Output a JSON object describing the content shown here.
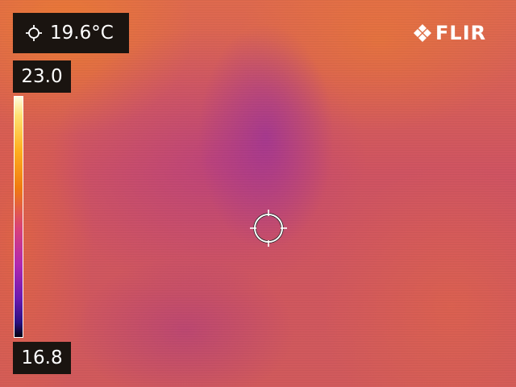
{
  "spot_meter": {
    "icon": "crosshair-icon",
    "value": "19.6°C"
  },
  "scale": {
    "max": "23.0",
    "min": "16.8",
    "palette": [
      "#fffbe0",
      "#ffe070",
      "#ffb020",
      "#f07a10",
      "#d8407a",
      "#b028b0",
      "#6a1ab0",
      "#2a1080",
      "#050010"
    ]
  },
  "brand": {
    "logo_text": "FLIR",
    "icon": "flir-logo-icon"
  },
  "reticle": {
    "icon": "spot-reticle-icon"
  }
}
